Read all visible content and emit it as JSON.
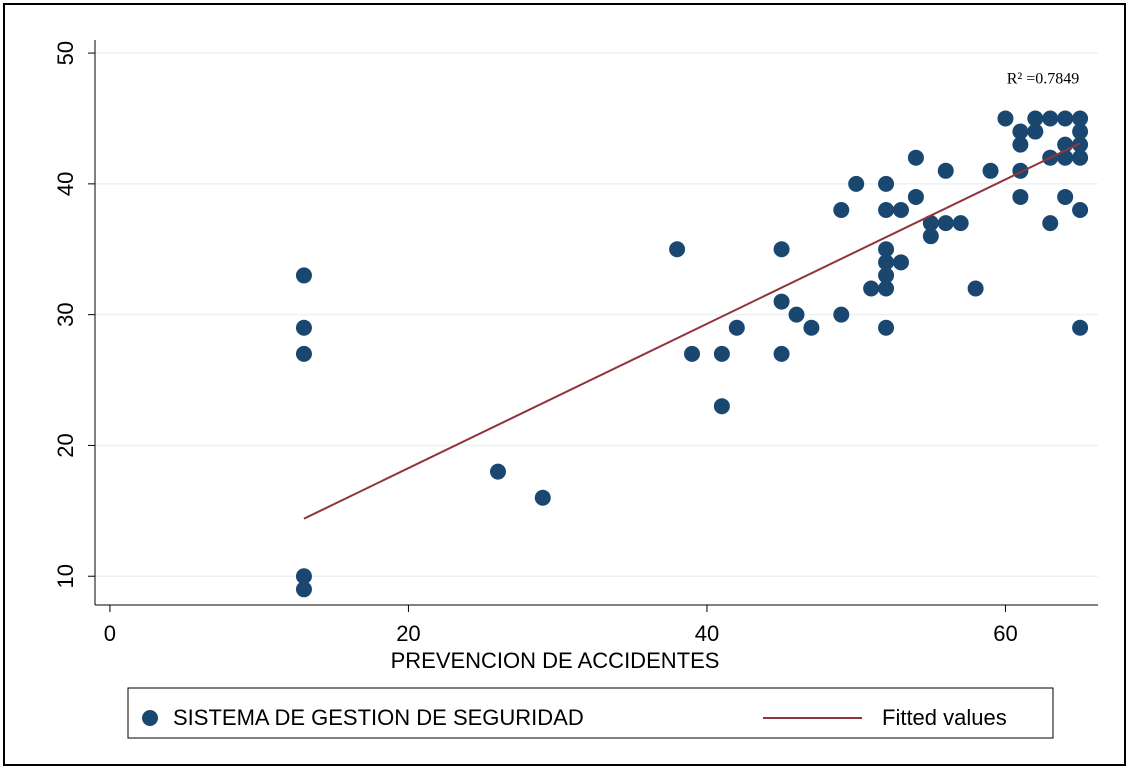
{
  "chart_data": {
    "type": "scatter",
    "xlabel": "PREVENCION DE ACCIDENTES",
    "annotation": "R² =0.7849",
    "xlim": [
      -1,
      66.2
    ],
    "ylim": [
      7.8,
      51
    ],
    "xticks": [
      0,
      20,
      40,
      60
    ],
    "yticks": [
      10,
      20,
      30,
      40,
      50
    ],
    "grid": true,
    "series": [
      {
        "name": "SISTEMA DE GESTION DE SEGURIDAD",
        "color": "#1a476f",
        "kind": "scatter",
        "x": [
          13,
          13,
          13,
          13,
          13,
          26,
          29,
          38,
          39,
          41,
          41,
          42,
          45,
          45,
          45,
          46,
          47,
          49,
          49,
          50,
          51,
          52,
          52,
          52,
          52,
          52,
          52,
          52,
          53,
          53,
          54,
          54,
          55,
          55,
          56,
          56,
          57,
          58,
          59,
          60,
          61,
          61,
          61,
          61,
          62,
          62,
          63,
          63,
          63,
          64,
          64,
          64,
          64,
          65,
          65,
          65,
          65,
          65,
          65
        ],
        "values": [
          33,
          29,
          27,
          10,
          9,
          18,
          16,
          35,
          27,
          27,
          23,
          29,
          35,
          31,
          27,
          30,
          29,
          38,
          30,
          40,
          32,
          40,
          38,
          35,
          34,
          33,
          32,
          29,
          38,
          34,
          42,
          39,
          37,
          36,
          41,
          37,
          37,
          32,
          41,
          45,
          44,
          43,
          41,
          39,
          45,
          44,
          45,
          42,
          37,
          45,
          43,
          42,
          39,
          45,
          44,
          43,
          42,
          38,
          29
        ]
      },
      {
        "name": "Fitted values",
        "color": "#90353b",
        "kind": "line",
        "x": [
          13,
          65
        ],
        "values": [
          14.4,
          43.1
        ]
      }
    ]
  }
}
